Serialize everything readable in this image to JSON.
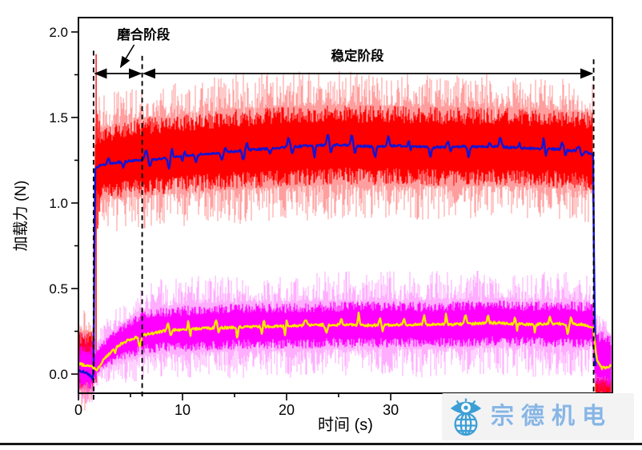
{
  "chart_data": {
    "type": "line",
    "title": "",
    "xlabel": "时间 (s)",
    "ylabel": "加载力 (N)",
    "xlim": [
      0,
      51.3
    ],
    "ylim": [
      -0.112,
      2.084
    ],
    "grid": false,
    "frame": true,
    "legend": null,
    "x_major_ticks": [
      0,
      10,
      20,
      30,
      40,
      50
    ],
    "x_major_labels": [
      "0",
      "10",
      "20",
      "30",
      "",
      ""
    ],
    "x_minor_ticks": [
      5,
      15,
      25,
      35,
      45
    ],
    "y_major_ticks": [
      0.0,
      0.5,
      1.0,
      1.5,
      2.0
    ],
    "y_major_labels": [
      "0.0",
      "0.5",
      "1.0",
      "1.5",
      "2.0"
    ],
    "y_minor_ticks": [
      0.25,
      0.75,
      1.25,
      1.75
    ],
    "dashed_markers": [
      {
        "t": 1.45,
        "v_top": 1.89,
        "v_bottom": -0.15
      },
      {
        "t": 6.12,
        "v_top": 1.86,
        "v_bottom": -0.15
      },
      {
        "t": 49.5,
        "v_top": 1.84,
        "v_bottom": -0.15
      }
    ],
    "phases": [
      {
        "label": "磨合阶段",
        "t_start": 1.45,
        "t_end": 6.12,
        "arrow_v": 1.757,
        "label_t": 6.25,
        "label_v": 1.985,
        "callout": {
          "from_t": 5.35,
          "from_v": 1.925,
          "to_t": 4.05,
          "to_v": 1.795
        }
      },
      {
        "label": "稳定阶段",
        "t_start": 6.12,
        "t_end": 49.5,
        "arrow_v": 1.757,
        "label_t": 26.8,
        "label_v": 1.862,
        "callout": null
      }
    ],
    "series": [
      {
        "id": "raw-band-red",
        "kind": "noise-band",
        "color": "#ff0000",
        "outer_alpha": 0.38,
        "t_range": [
          0,
          51.2
        ],
        "center_pts": [
          [
            0,
            0.08
          ],
          [
            1.45,
            0.08
          ],
          [
            1.6,
            1.22
          ],
          [
            3,
            1.24
          ],
          [
            6,
            1.27
          ],
          [
            10,
            1.29
          ],
          [
            15,
            1.315
          ],
          [
            20,
            1.33
          ],
          [
            25,
            1.34
          ],
          [
            30,
            1.335
          ],
          [
            35,
            1.33
          ],
          [
            40,
            1.33
          ],
          [
            45,
            1.32
          ],
          [
            49.4,
            1.3
          ],
          [
            49.65,
            -0.07
          ],
          [
            51.2,
            -0.07
          ]
        ],
        "core_halfwidth_pts": [
          [
            0,
            0.16
          ],
          [
            1.45,
            0.16
          ],
          [
            1.65,
            0.2
          ],
          [
            6,
            0.22
          ],
          [
            15,
            0.225
          ],
          [
            49.4,
            0.22
          ],
          [
            49.65,
            0.05
          ],
          [
            51.2,
            0.05
          ]
        ],
        "spike_extra_pts": [
          [
            0,
            0.07
          ],
          [
            1.45,
            0.07
          ],
          [
            1.65,
            0.1
          ],
          [
            15,
            0.11
          ],
          [
            49.4,
            0.1
          ],
          [
            49.65,
            0.03
          ],
          [
            51.2,
            0.03
          ]
        ],
        "onset_spikes": [
          [
            1.7,
            -0.05,
            1.87
          ],
          [
            1.84,
            0.85,
            1.52
          ],
          [
            2.0,
            0.95,
            1.48
          ]
        ]
      },
      {
        "id": "raw-band-magenta",
        "kind": "noise-band",
        "color": "#ff00ff",
        "outer_alpha": 0.32,
        "t_range": [
          0,
          51.2
        ],
        "center_pts": [
          [
            0,
            0.04
          ],
          [
            1.45,
            0.04
          ],
          [
            1.7,
            0.06
          ],
          [
            2.5,
            0.12
          ],
          [
            4,
            0.18
          ],
          [
            6,
            0.24
          ],
          [
            8,
            0.26
          ],
          [
            12,
            0.27
          ],
          [
            16,
            0.28
          ],
          [
            20,
            0.28
          ],
          [
            25,
            0.29
          ],
          [
            30,
            0.29
          ],
          [
            35,
            0.29
          ],
          [
            40,
            0.3
          ],
          [
            45,
            0.29
          ],
          [
            49.4,
            0.29
          ],
          [
            49.7,
            0.1
          ],
          [
            51.2,
            0.08
          ]
        ],
        "core_halfwidth_pts": [
          [
            0,
            0.12
          ],
          [
            1.45,
            0.12
          ],
          [
            1.7,
            0.07
          ],
          [
            4,
            0.1
          ],
          [
            6,
            0.12
          ],
          [
            10,
            0.13
          ],
          [
            49.4,
            0.13
          ],
          [
            49.7,
            0.16
          ],
          [
            51.2,
            0.15
          ]
        ],
        "spike_extra_pts": [
          [
            0,
            0.05
          ],
          [
            1.45,
            0.05
          ],
          [
            1.7,
            0.05
          ],
          [
            6,
            0.08
          ],
          [
            10,
            0.09
          ],
          [
            49.4,
            0.09
          ],
          [
            49.7,
            0.05
          ],
          [
            51.2,
            0.04
          ]
        ],
        "onset_spikes": []
      },
      {
        "id": "mean-line-blue",
        "kind": "mean-line",
        "color": "#1414d2",
        "width": 2.5,
        "noise": 0.006,
        "blip_amp": 0.045,
        "blip_gap": [
          1.0,
          2.6
        ],
        "blip_t_range": [
          2.2,
          49.0
        ],
        "pts": [
          [
            0,
            0.02
          ],
          [
            0.8,
            0.01
          ],
          [
            1.3,
            -0.02
          ],
          [
            1.45,
            -0.04
          ],
          [
            1.58,
            1.2
          ],
          [
            2,
            1.22
          ],
          [
            4,
            1.24
          ],
          [
            6,
            1.25
          ],
          [
            8,
            1.26
          ],
          [
            10,
            1.275
          ],
          [
            13,
            1.29
          ],
          [
            16,
            1.31
          ],
          [
            19,
            1.32
          ],
          [
            22,
            1.335
          ],
          [
            25,
            1.34
          ],
          [
            28,
            1.33
          ],
          [
            31,
            1.335
          ],
          [
            34,
            1.325
          ],
          [
            37,
            1.33
          ],
          [
            40,
            1.33
          ],
          [
            43,
            1.32
          ],
          [
            46,
            1.315
          ],
          [
            48.5,
            1.3
          ],
          [
            49.45,
            1.285
          ],
          [
            49.55,
            0.55
          ],
          [
            49.72,
            -0.09
          ]
        ]
      },
      {
        "id": "mean-line-yellow",
        "kind": "mean-line",
        "color": "#ffe400",
        "width": 2.5,
        "noise": 0.007,
        "blip_amp": 0.05,
        "blip_gap": [
          1.2,
          2.8
        ],
        "blip_t_range": [
          2.6,
          49.0
        ],
        "pts": [
          [
            0,
            0.06
          ],
          [
            0.8,
            0.05
          ],
          [
            1.4,
            0.04
          ],
          [
            1.75,
            0.02
          ],
          [
            2.5,
            0.09
          ],
          [
            3.5,
            0.15
          ],
          [
            4.5,
            0.19
          ],
          [
            6,
            0.225
          ],
          [
            8,
            0.25
          ],
          [
            10,
            0.26
          ],
          [
            13,
            0.27
          ],
          [
            16,
            0.275
          ],
          [
            20,
            0.28
          ],
          [
            24,
            0.29
          ],
          [
            28,
            0.285
          ],
          [
            32,
            0.29
          ],
          [
            36,
            0.29
          ],
          [
            40,
            0.3
          ],
          [
            43,
            0.29
          ],
          [
            46,
            0.295
          ],
          [
            48.5,
            0.29
          ],
          [
            49.45,
            0.275
          ],
          [
            49.8,
            0.08
          ],
          [
            50.3,
            0.035
          ],
          [
            51.0,
            0.045
          ],
          [
            51.15,
            0.06
          ]
        ]
      }
    ]
  },
  "watermark": {
    "text": "宗德机电",
    "logo": "eye-globe-icon",
    "box_color": "#f3f3f4",
    "logo_color": "#3b9fd6",
    "text_color": "#87b6e6"
  },
  "figure": {
    "background": "#ffffff",
    "bottom_rule_color": "#161616"
  }
}
